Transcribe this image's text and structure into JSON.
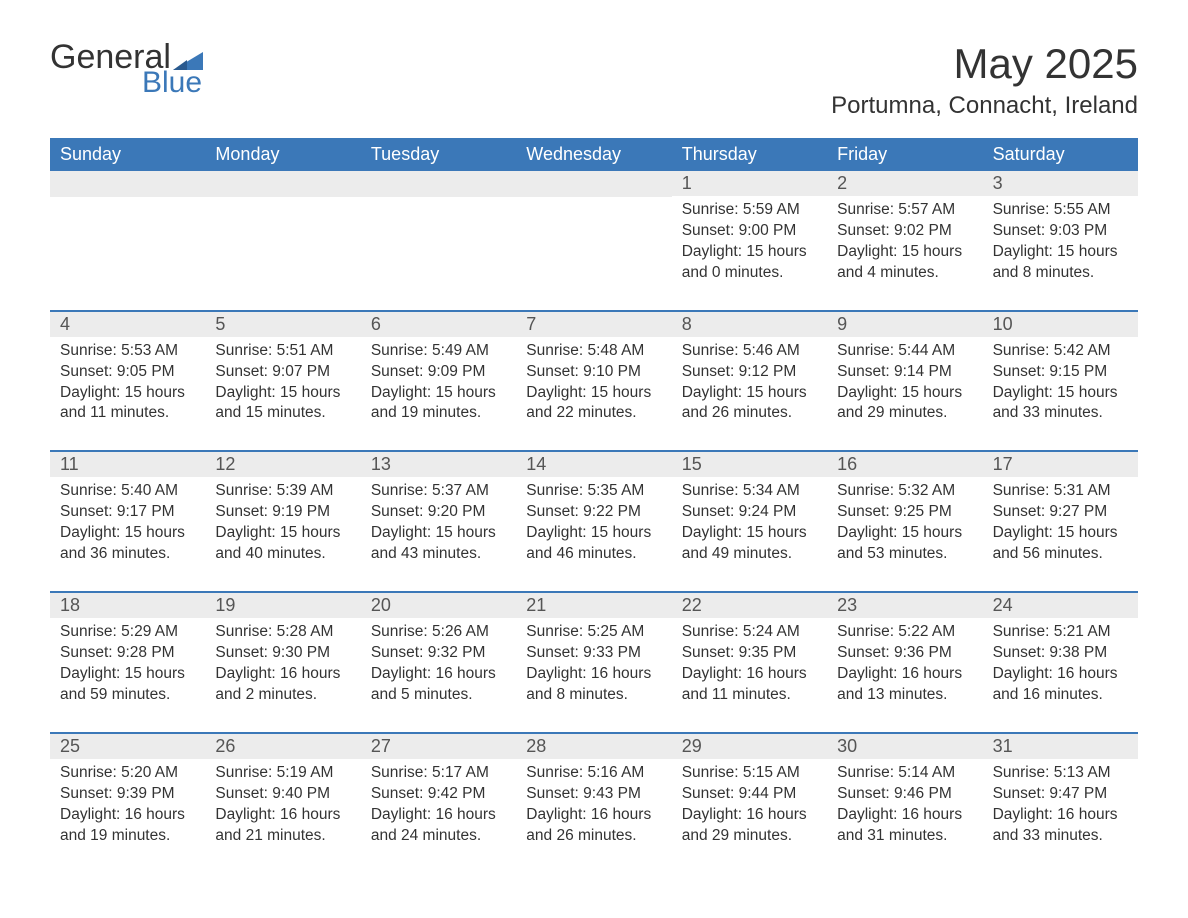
{
  "logo": {
    "text_main": "General",
    "text_sub": "Blue",
    "brand_color": "#3b78b8"
  },
  "title": "May 2025",
  "location": "Portumna, Connacht, Ireland",
  "colors": {
    "header_bg": "#3b78b8",
    "header_text": "#ffffff",
    "daynum_bg": "#ececec",
    "text": "#333333",
    "week_divider": "#3b78b8"
  },
  "layout": {
    "columns": 7,
    "rows": 5,
    "first_day_column_index": 4
  },
  "weekdays": [
    "Sunday",
    "Monday",
    "Tuesday",
    "Wednesday",
    "Thursday",
    "Friday",
    "Saturday"
  ],
  "weeks": [
    [
      null,
      null,
      null,
      null,
      {
        "n": "1",
        "sunrise": "Sunrise: 5:59 AM",
        "sunset": "Sunset: 9:00 PM",
        "daylight": "Daylight: 15 hours and 0 minutes."
      },
      {
        "n": "2",
        "sunrise": "Sunrise: 5:57 AM",
        "sunset": "Sunset: 9:02 PM",
        "daylight": "Daylight: 15 hours and 4 minutes."
      },
      {
        "n": "3",
        "sunrise": "Sunrise: 5:55 AM",
        "sunset": "Sunset: 9:03 PM",
        "daylight": "Daylight: 15 hours and 8 minutes."
      }
    ],
    [
      {
        "n": "4",
        "sunrise": "Sunrise: 5:53 AM",
        "sunset": "Sunset: 9:05 PM",
        "daylight": "Daylight: 15 hours and 11 minutes."
      },
      {
        "n": "5",
        "sunrise": "Sunrise: 5:51 AM",
        "sunset": "Sunset: 9:07 PM",
        "daylight": "Daylight: 15 hours and 15 minutes."
      },
      {
        "n": "6",
        "sunrise": "Sunrise: 5:49 AM",
        "sunset": "Sunset: 9:09 PM",
        "daylight": "Daylight: 15 hours and 19 minutes."
      },
      {
        "n": "7",
        "sunrise": "Sunrise: 5:48 AM",
        "sunset": "Sunset: 9:10 PM",
        "daylight": "Daylight: 15 hours and 22 minutes."
      },
      {
        "n": "8",
        "sunrise": "Sunrise: 5:46 AM",
        "sunset": "Sunset: 9:12 PM",
        "daylight": "Daylight: 15 hours and 26 minutes."
      },
      {
        "n": "9",
        "sunrise": "Sunrise: 5:44 AM",
        "sunset": "Sunset: 9:14 PM",
        "daylight": "Daylight: 15 hours and 29 minutes."
      },
      {
        "n": "10",
        "sunrise": "Sunrise: 5:42 AM",
        "sunset": "Sunset: 9:15 PM",
        "daylight": "Daylight: 15 hours and 33 minutes."
      }
    ],
    [
      {
        "n": "11",
        "sunrise": "Sunrise: 5:40 AM",
        "sunset": "Sunset: 9:17 PM",
        "daylight": "Daylight: 15 hours and 36 minutes."
      },
      {
        "n": "12",
        "sunrise": "Sunrise: 5:39 AM",
        "sunset": "Sunset: 9:19 PM",
        "daylight": "Daylight: 15 hours and 40 minutes."
      },
      {
        "n": "13",
        "sunrise": "Sunrise: 5:37 AM",
        "sunset": "Sunset: 9:20 PM",
        "daylight": "Daylight: 15 hours and 43 minutes."
      },
      {
        "n": "14",
        "sunrise": "Sunrise: 5:35 AM",
        "sunset": "Sunset: 9:22 PM",
        "daylight": "Daylight: 15 hours and 46 minutes."
      },
      {
        "n": "15",
        "sunrise": "Sunrise: 5:34 AM",
        "sunset": "Sunset: 9:24 PM",
        "daylight": "Daylight: 15 hours and 49 minutes."
      },
      {
        "n": "16",
        "sunrise": "Sunrise: 5:32 AM",
        "sunset": "Sunset: 9:25 PM",
        "daylight": "Daylight: 15 hours and 53 minutes."
      },
      {
        "n": "17",
        "sunrise": "Sunrise: 5:31 AM",
        "sunset": "Sunset: 9:27 PM",
        "daylight": "Daylight: 15 hours and 56 minutes."
      }
    ],
    [
      {
        "n": "18",
        "sunrise": "Sunrise: 5:29 AM",
        "sunset": "Sunset: 9:28 PM",
        "daylight": "Daylight: 15 hours and 59 minutes."
      },
      {
        "n": "19",
        "sunrise": "Sunrise: 5:28 AM",
        "sunset": "Sunset: 9:30 PM",
        "daylight": "Daylight: 16 hours and 2 minutes."
      },
      {
        "n": "20",
        "sunrise": "Sunrise: 5:26 AM",
        "sunset": "Sunset: 9:32 PM",
        "daylight": "Daylight: 16 hours and 5 minutes."
      },
      {
        "n": "21",
        "sunrise": "Sunrise: 5:25 AM",
        "sunset": "Sunset: 9:33 PM",
        "daylight": "Daylight: 16 hours and 8 minutes."
      },
      {
        "n": "22",
        "sunrise": "Sunrise: 5:24 AM",
        "sunset": "Sunset: 9:35 PM",
        "daylight": "Daylight: 16 hours and 11 minutes."
      },
      {
        "n": "23",
        "sunrise": "Sunrise: 5:22 AM",
        "sunset": "Sunset: 9:36 PM",
        "daylight": "Daylight: 16 hours and 13 minutes."
      },
      {
        "n": "24",
        "sunrise": "Sunrise: 5:21 AM",
        "sunset": "Sunset: 9:38 PM",
        "daylight": "Daylight: 16 hours and 16 minutes."
      }
    ],
    [
      {
        "n": "25",
        "sunrise": "Sunrise: 5:20 AM",
        "sunset": "Sunset: 9:39 PM",
        "daylight": "Daylight: 16 hours and 19 minutes."
      },
      {
        "n": "26",
        "sunrise": "Sunrise: 5:19 AM",
        "sunset": "Sunset: 9:40 PM",
        "daylight": "Daylight: 16 hours and 21 minutes."
      },
      {
        "n": "27",
        "sunrise": "Sunrise: 5:17 AM",
        "sunset": "Sunset: 9:42 PM",
        "daylight": "Daylight: 16 hours and 24 minutes."
      },
      {
        "n": "28",
        "sunrise": "Sunrise: 5:16 AM",
        "sunset": "Sunset: 9:43 PM",
        "daylight": "Daylight: 16 hours and 26 minutes."
      },
      {
        "n": "29",
        "sunrise": "Sunrise: 5:15 AM",
        "sunset": "Sunset: 9:44 PM",
        "daylight": "Daylight: 16 hours and 29 minutes."
      },
      {
        "n": "30",
        "sunrise": "Sunrise: 5:14 AM",
        "sunset": "Sunset: 9:46 PM",
        "daylight": "Daylight: 16 hours and 31 minutes."
      },
      {
        "n": "31",
        "sunrise": "Sunrise: 5:13 AM",
        "sunset": "Sunset: 9:47 PM",
        "daylight": "Daylight: 16 hours and 33 minutes."
      }
    ]
  ]
}
